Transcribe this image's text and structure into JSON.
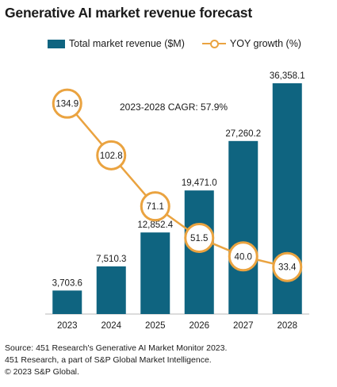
{
  "colors": {
    "bar": "#0f6480",
    "line": "#eaa340"
  },
  "chart_data": {
    "type": "bar",
    "title": "Generative AI market revenue forecast",
    "subtitle": "",
    "categories": [
      "2023",
      "2024",
      "2025",
      "2026",
      "2027",
      "2028"
    ],
    "series": [
      {
        "name": "Total market revenue ($M)",
        "kind": "bar",
        "values": [
          3703.6,
          7510.3,
          12852.4,
          19471.0,
          27260.2,
          36358.1
        ],
        "labels": [
          "3,703.6",
          "7,510.3",
          "12,852.4",
          "19,471.0",
          "27,260.2",
          "36,358.1"
        ]
      },
      {
        "name": "YOY growth (%)",
        "kind": "line",
        "values": [
          134.9,
          102.8,
          71.1,
          51.5,
          40.0,
          33.4
        ],
        "labels": [
          "134.9",
          "102.8",
          "71.1",
          "51.5",
          "40.0",
          "33.4"
        ]
      }
    ],
    "annotation": "2023-2028 CAGR: 57.9%",
    "legend_position": "top",
    "grid": false,
    "xlabel": "",
    "ylabel": ""
  },
  "footer": {
    "line1": "Source: 451 Research's Generative AI Market Monitor 2023.",
    "line2": "451 Research, a part of S&P Global Market Intelligence.",
    "line3": "© 2023 S&P Global."
  }
}
